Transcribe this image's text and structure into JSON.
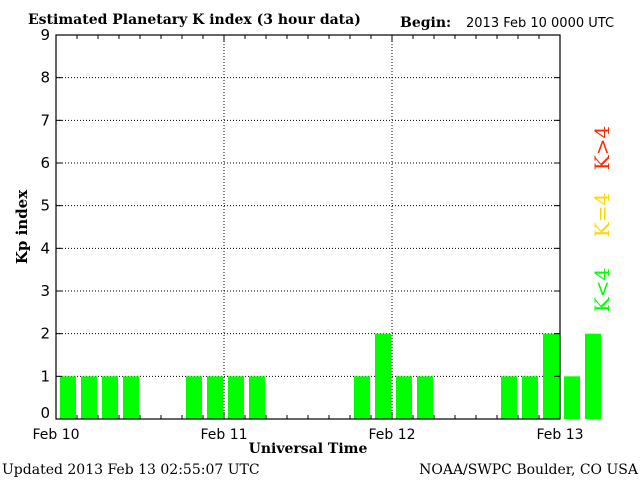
{
  "chart_data": {
    "type": "bar",
    "title": "Estimated Planetary K index (3 hour data)",
    "begin_label": "Begin:",
    "begin_value": "2013 Feb 10 0000 UTC",
    "xlabel": "Universal Time",
    "ylabel": "Kp index",
    "ylim": [
      0,
      9
    ],
    "yticks": [
      "0",
      "1",
      "2",
      "3",
      "4",
      "5",
      "6",
      "7",
      "8",
      "9"
    ],
    "x_tick_labels": [
      "Feb 10",
      "Feb 11",
      "Feb 12",
      "Feb 13"
    ],
    "bar_interval_hours": 3,
    "values": [
      1,
      1,
      1,
      1,
      0,
      0,
      1,
      1,
      1,
      1,
      0,
      0,
      0,
      0,
      1,
      2,
      1,
      1,
      0,
      0,
      0,
      1,
      1,
      2,
      1,
      2
    ],
    "bar_color": "#00ff00",
    "grid": true,
    "legend": [
      {
        "label": "K>4",
        "color": "#ff2a00"
      },
      {
        "label": "K=4",
        "color": "#ffd700"
      },
      {
        "label": "K<4",
        "color": "#00ff00"
      }
    ]
  },
  "footer": {
    "updated": "Updated 2013 Feb 13 02:55:07 UTC",
    "source": "NOAA/SWPC Boulder, CO USA"
  }
}
